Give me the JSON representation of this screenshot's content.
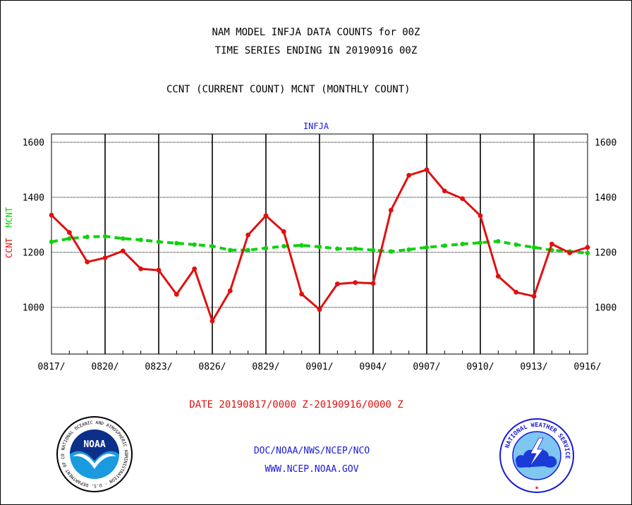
{
  "header": {
    "title_line1": "NAM MODEL INFJA DATA COUNTS for 00Z",
    "title_line2": "TIME SERIES ENDING IN 20190916 00Z",
    "subtitle": "CCNT (CURRENT COUNT) MCNT (MONTHLY COUNT)"
  },
  "footer": {
    "date_range": "DATE 20190817/0000 Z-20190916/0000 Z",
    "agency": "DOC/NOAA/NWS/NCEP/NCO",
    "website": "WWW.NCEP.NOAA.GOV"
  },
  "logos": {
    "noaa_text": "NOAA",
    "noaa_ring": "NATIONAL OCEANIC AND ATMOSPHERIC ADMINISTRATION · U.S. DEPARTMENT OF COMMERCE",
    "nws_ring": "NATIONAL WEATHER SERVICE"
  },
  "colors": {
    "ccnt": "#e01010",
    "mcnt": "#10d010",
    "accent_blue": "#1a1ad8",
    "noaa_blue": "#1a9be0",
    "noaa_navy": "#0c2f8a"
  },
  "chart_data": {
    "type": "line",
    "title": "INFJA",
    "ylabel_parts": [
      "CCNT",
      "MCNT"
    ],
    "xlabel": "DATE 20190817/0000 Z-20190916/0000 Z",
    "ylim": [
      830,
      1630
    ],
    "yticks": [
      1000,
      1200,
      1400,
      1600
    ],
    "grid": true,
    "x_tick_labels": [
      "0817/",
      "0820/",
      "0823/",
      "0826/",
      "0829/",
      "0901/",
      "0904/",
      "0907/",
      "0910/",
      "0913/",
      "0916/"
    ],
    "x": [
      "0817",
      "0818",
      "0819",
      "0820",
      "0821",
      "0822",
      "0823",
      "0824",
      "0825",
      "0826",
      "0827",
      "0828",
      "0829",
      "0830",
      "0831",
      "0901",
      "0902",
      "0903",
      "0904",
      "0905",
      "0906",
      "0907",
      "0908",
      "0909",
      "0910",
      "0911",
      "0912",
      "0913",
      "0914",
      "0915",
      "0916"
    ],
    "series": [
      {
        "name": "CCNT",
        "values": [
          1335,
          1272,
          1165,
          1180,
          1205,
          1140,
          1135,
          1047,
          1140,
          950,
          1060,
          1263,
          1333,
          1275,
          1048,
          992,
          1085,
          1090,
          1087,
          1353,
          1480,
          1500,
          1423,
          1395,
          1333,
          1113,
          1055,
          1040,
          1230,
          1198,
          1218
        ]
      },
      {
        "name": "MCNT",
        "values": [
          1238,
          1250,
          1256,
          1258,
          1250,
          1245,
          1238,
          1233,
          1228,
          1222,
          1208,
          1208,
          1215,
          1222,
          1225,
          1220,
          1213,
          1213,
          1208,
          1203,
          1210,
          1218,
          1224,
          1230,
          1235,
          1240,
          1228,
          1218,
          1208,
          1203,
          1197
        ]
      }
    ]
  }
}
